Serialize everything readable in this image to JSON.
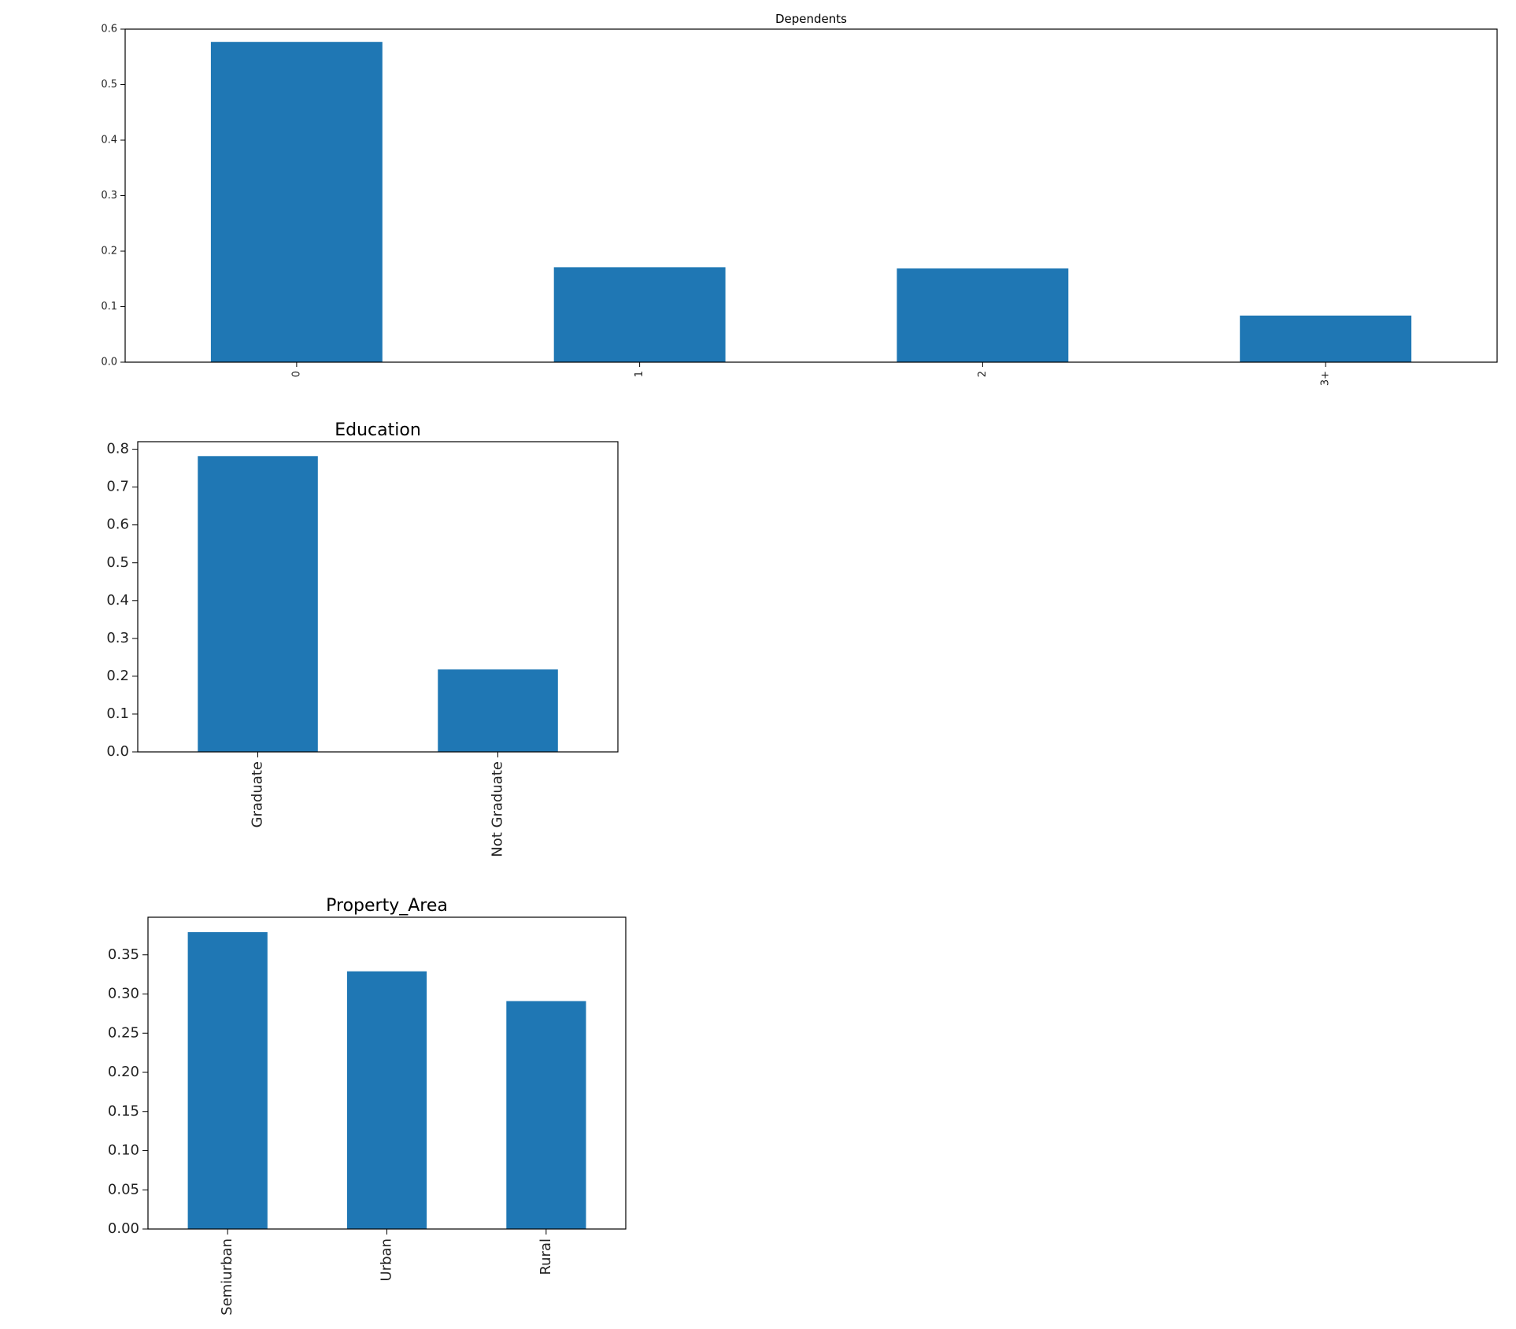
{
  "chart_data": [
    {
      "type": "bar",
      "title": "Dependents",
      "categories": [
        "0",
        "1",
        "2",
        "3+"
      ],
      "values": [
        0.577,
        0.171,
        0.169,
        0.084
      ],
      "ylim": [
        0,
        0.6
      ],
      "yticks": [
        "0.0",
        "0.1",
        "0.2",
        "0.3",
        "0.4",
        "0.5",
        "0.6"
      ],
      "xlabel": "",
      "ylabel": "",
      "grid": false,
      "bar_color": "#1f77b4"
    },
    {
      "type": "bar",
      "title": "Education",
      "categories": [
        "Graduate",
        "Not Graduate"
      ],
      "values": [
        0.782,
        0.218
      ],
      "ylim": [
        0,
        0.82
      ],
      "yticks": [
        "0.0",
        "0.1",
        "0.2",
        "0.3",
        "0.4",
        "0.5",
        "0.6",
        "0.7",
        "0.8"
      ],
      "xlabel": "",
      "ylabel": "",
      "grid": false,
      "bar_color": "#1f77b4"
    },
    {
      "type": "bar",
      "title": "Property_Area",
      "categories": [
        "Semiurban",
        "Urban",
        "Rural"
      ],
      "values": [
        0.379,
        0.329,
        0.291
      ],
      "ylim": [
        0,
        0.398
      ],
      "yticks": [
        "0.00",
        "0.05",
        "0.10",
        "0.15",
        "0.20",
        "0.25",
        "0.30",
        "0.35"
      ],
      "xlabel": "",
      "ylabel": "",
      "grid": false,
      "bar_color": "#1f77b4"
    }
  ]
}
